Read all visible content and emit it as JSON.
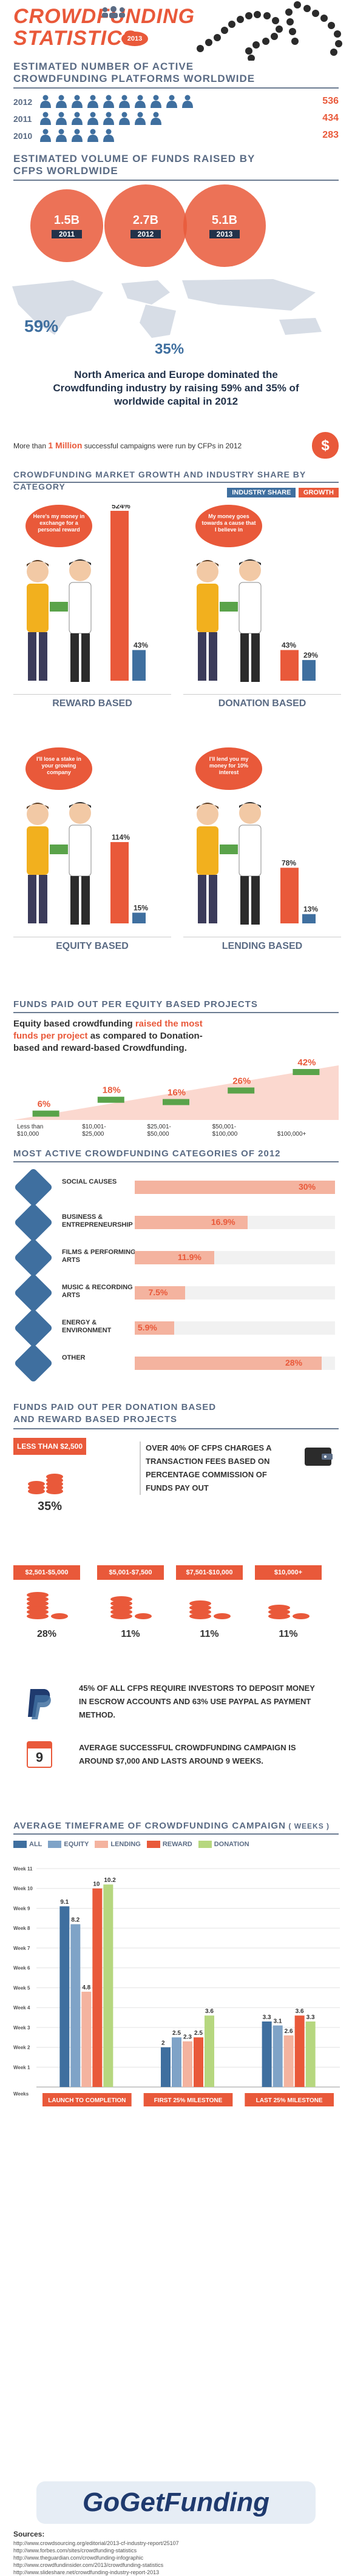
{
  "header": {
    "title_line1": "Crowdfunding",
    "title_line2": "Statistics",
    "badge": "2013"
  },
  "platforms": {
    "heading": "Estimated number of active crowdfunding platforms worldwide",
    "rows": [
      {
        "year": "2012",
        "value": "536",
        "icons": 10
      },
      {
        "year": "2011",
        "value": "434",
        "icons": 8
      },
      {
        "year": "2010",
        "value": "283",
        "icons": 5
      }
    ]
  },
  "volume": {
    "heading": "Estimated volume of funds raised by CFPs worldwide",
    "circles": [
      {
        "amount": "1.5B",
        "year": "2011"
      },
      {
        "amount": "2.7B",
        "year": "2012"
      },
      {
        "amount": "5.1B",
        "year": "2013"
      }
    ]
  },
  "world": {
    "pct_na": "59%",
    "pct_eu": "35%",
    "statement": "North America and Europe dominated the Crowdfunding industry by raising 59% and 35% of worldwide capital in 2012"
  },
  "campaigns": {
    "prefix": "More than",
    "highlight": "1 Million",
    "suffix": "successful campaigns were run by CFPs in 2012",
    "icon": "$"
  },
  "market": {
    "heading": "Crowdfunding market growth and industry share by category",
    "legend_share": "Industry Share",
    "legend_growth": "Growth",
    "colors": {
      "share": "#3f6f9f",
      "growth": "#e9593a"
    },
    "panels": [
      {
        "label": "Reward Based",
        "bubble": "Here's my money in exchange for a personal reward",
        "growth": 524,
        "share": 43,
        "growth_label": "524%",
        "share_label": "43%"
      },
      {
        "label": "Donation Based",
        "bubble": "My money goes towards a cause that I believe in",
        "growth": 43,
        "share": 29,
        "growth_label": "43%",
        "share_label": "29%"
      },
      {
        "label": "Equity Based",
        "bubble": "I'll lose a stake in your growing company",
        "growth": 114,
        "share": 15,
        "growth_label": "114%",
        "share_label": "15%"
      },
      {
        "label": "Lending Based",
        "bubble": "I'll lend you my money for 10% interest",
        "growth": 78,
        "share": 13,
        "growth_label": "78%",
        "share_label": "13%"
      }
    ]
  },
  "equity": {
    "heading": "Funds paid out per equity based projects",
    "text_a": "Equity based crowdfunding",
    "text_highlight": "raised the most funds per project",
    "text_b": "as compared to Donation-based and reward-based Crowdfunding.",
    "steps": [
      {
        "pct": "6%",
        "range_a": "Less than",
        "range_b": "$10,000"
      },
      {
        "pct": "18%",
        "range_a": "$10,001-",
        "range_b": "$25,000"
      },
      {
        "pct": "16%",
        "range_a": "$25,001-",
        "range_b": "$50,000"
      },
      {
        "pct": "26%",
        "range_a": "$50,001-",
        "range_b": "$100,000"
      },
      {
        "pct": "42%",
        "range_a": "",
        "range_b": "$100,000+"
      }
    ]
  },
  "categories": {
    "heading": "Most active crowdfunding categories of 2012",
    "items": [
      {
        "label": "Social Causes",
        "value": 30,
        "label_value": "30%",
        "icon": "people-icon"
      },
      {
        "label": "Business & Entrepreneurship",
        "value": 16.9,
        "label_value": "16.9%",
        "icon": "briefcase-icon"
      },
      {
        "label": "Films & Performing Arts",
        "value": 11.9,
        "label_value": "11.9%",
        "icon": "film-icon"
      },
      {
        "label": "Music & Recording Arts",
        "value": 7.5,
        "label_value": "7.5%",
        "icon": "microphone-icon"
      },
      {
        "label": "Energy & Environment",
        "value": 5.9,
        "label_value": "5.9%",
        "icon": "leaf-icon"
      },
      {
        "label": "Other",
        "value": 28,
        "label_value": "28%",
        "icon": "globe-icon"
      }
    ]
  },
  "donation": {
    "heading": "Funds paid out per donation based and reward based projects",
    "first": {
      "range": "Less than $2,500",
      "pct": "35%"
    },
    "fee_text": "Over 40% of CFPs charges a transaction fees based on percentage commission of funds pay out",
    "others": [
      {
        "range": "$2,501-$5,000",
        "pct": "28%"
      },
      {
        "range": "$5,001-$7,500",
        "pct": "11%"
      },
      {
        "range": "$7,501-$10,000",
        "pct": "11%"
      },
      {
        "range": "$10,000+",
        "pct": "11%"
      }
    ],
    "paypal_text": "45% of all CFPs require investors to deposit money in escrow accounts and 63% use paypal as payment method.",
    "calendar_day": "9",
    "calendar_text": "Average successful crowdfunding campaign is around $7,000 and lasts around 9 weeks."
  },
  "timeframe": {
    "heading": "Average timeframe of crowdfunding campaign",
    "heading_suffix": "( weeks )",
    "legend": [
      {
        "name": "All",
        "color": "#3f6f9f"
      },
      {
        "name": "Equity",
        "color": "#7fa3c7"
      },
      {
        "name": "Lending",
        "color": "#f4b39f"
      },
      {
        "name": "Reward",
        "color": "#e9593a"
      },
      {
        "name": "Donation",
        "color": "#b6d77f"
      }
    ],
    "y_labels": [
      "Week 1",
      "Week 2",
      "Week 3",
      "Week 4",
      "Week 5",
      "Week 6",
      "Week 7",
      "Week 8",
      "Week 9",
      "Week 10",
      "Week 11"
    ],
    "y_bottom": "Weeks",
    "groups": [
      {
        "label": "Launch to completion",
        "values": [
          9.1,
          8.2,
          4.8,
          10,
          10.2
        ],
        "labels": [
          "9.1",
          "8.2",
          "4.8",
          "10",
          "10.2"
        ]
      },
      {
        "label": "First 25% milestone",
        "values": [
          2,
          2.5,
          2.3,
          2.5,
          3.6
        ],
        "labels": [
          "2",
          "2.5",
          "2.3",
          "2.5",
          "3.6"
        ]
      },
      {
        "label": "Last 25% milestone",
        "values": [
          3.3,
          3.1,
          2.6,
          3.6,
          3.3
        ],
        "labels": [
          "3.3",
          "3.1",
          "2.6",
          "3.6",
          "3.3"
        ]
      }
    ]
  },
  "chart_data": {
    "type": "bar",
    "title": "Average timeframe of crowdfunding campaign ( weeks )",
    "categories": [
      "Launch to completion",
      "First 25% milestone",
      "Last 25% milestone"
    ],
    "series": [
      {
        "name": "All",
        "values": [
          9.1,
          2,
          3.3
        ]
      },
      {
        "name": "Equity",
        "values": [
          8.2,
          2.5,
          3.1
        ]
      },
      {
        "name": "Lending",
        "values": [
          4.8,
          2.3,
          2.6
        ]
      },
      {
        "name": "Reward",
        "values": [
          10,
          2.5,
          3.6
        ]
      },
      {
        "name": "Donation",
        "values": [
          10.2,
          3.6,
          3.3
        ]
      }
    ],
    "ylim": [
      0,
      11
    ],
    "legend": "top"
  },
  "footer": {
    "logo": "GoGetFunding",
    "sources_heading": "Sources:",
    "sources": [
      "http://www.crowdsourcing.org/editorial/2013-cf-industry-report/25107",
      "http://www.forbes.com/sites/crowdfunding-statistics",
      "http://www.theguardian.com/crowdfunding-infographic",
      "http://www.crowdfundinsider.com/2013/crowdfunding-statistics",
      "http://www.slideshare.net/crowdfunding-industry-report-2013"
    ]
  }
}
